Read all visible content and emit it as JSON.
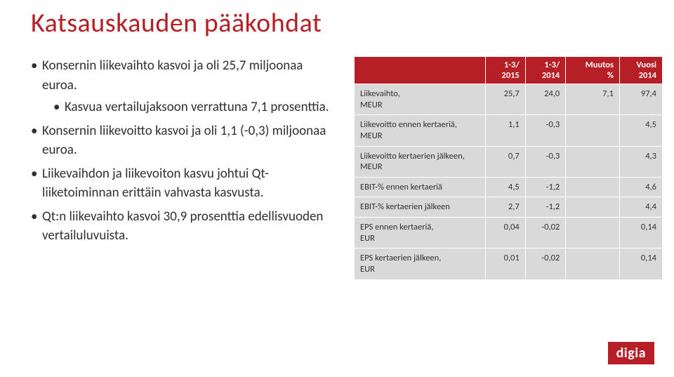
{
  "title": "Katsauskauden pääkohdat",
  "logo": "digia",
  "bullets": {
    "b1": "Konsernin liikevaihto  kasvoi ja oli 25,7 miljoonaa euroa.",
    "b1_sub": "Kasvua vertailujaksoon verrattuna 7,1 prosenttia.",
    "b2": "Konsernin liikevoitto kasvoi ja oli 1,1 (-0,3) miljoonaa euroa.",
    "b3": "Liikevaihdon ja liikevoiton kasvu johtui Qt-liiketoiminnan erittäin vahvasta kasvusta.",
    "b4": "Qt:n liikevaihto kasvoi 30,9 prosenttia edellisvuoden vertailuluvuista."
  },
  "table": {
    "header": {
      "empty": "",
      "c1a": "1-3/",
      "c1b": "2015",
      "c2a": "1-3/",
      "c2b": "2014",
      "c3a": "Muutos",
      "c3b": "%",
      "c4a": "Vuosi",
      "c4b": "2014"
    },
    "rows": [
      {
        "label": "Liikevaihto,\nMEUR",
        "v1": "25,7",
        "v2": "24,0",
        "v3": "7,1",
        "v4": "97,4"
      },
      {
        "label": "Liikevoitto ennen kertaeriä,\nMEUR",
        "v1": "1,1",
        "v2": "-0,3",
        "v3": "",
        "v4": "4,5"
      },
      {
        "label": "Liikevoitto kertaerien jälkeen, MEUR",
        "v1": "0,7",
        "v2": "-0,3",
        "v3": "",
        "v4": "4,3"
      },
      {
        "label": "EBIT-% ennen kertaeriä",
        "v1": "4,5",
        "v2": "-1,2",
        "v3": "",
        "v4": "4,6"
      },
      {
        "label": "EBIT-% kertaerien jälkeen",
        "v1": "2,7",
        "v2": "-1,2",
        "v3": "",
        "v4": "4,4"
      },
      {
        "label": "EPS ennen kertaeriä,\nEUR",
        "v1": "0,04",
        "v2": "-0,02",
        "v3": "",
        "v4": "0,14"
      },
      {
        "label": "EPS kertaerien jälkeen,\nEUR",
        "v1": "0,01",
        "v2": "-0,02",
        "v3": "",
        "v4": "0,14"
      }
    ]
  }
}
